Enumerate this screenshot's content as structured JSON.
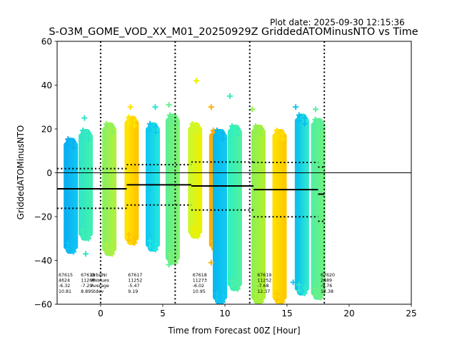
{
  "plot_date": "Plot date: 2025-09-30 12:15:36",
  "chart_data": {
    "type": "scatter",
    "title": "S-O3M_GOME_VOD_XX_M01_20250929Z GriddedATOMinusNTO vs Time",
    "xlabel": "Time from Forecast 00Z [Hour]",
    "ylabel": "GriddedATOMinusNTO",
    "xlim": [
      -3.5,
      25
    ],
    "ylim": [
      -60,
      60
    ],
    "xticks": [
      0,
      5,
      10,
      15,
      20,
      25
    ],
    "yticks": [
      -60,
      -40,
      -20,
      0,
      20,
      40,
      60
    ],
    "xtick_labels": [
      "0",
      "5",
      "10",
      "15",
      "20",
      "25"
    ],
    "ytick_labels": [
      "−60",
      "−40",
      "−20",
      "0",
      "20",
      "40",
      "60"
    ],
    "zero_line": 0,
    "orbit_boundaries": [
      0,
      6,
      12,
      18
    ],
    "columns": [
      {
        "x": -2.4,
        "top": 16,
        "bottom": -37,
        "color": "#0aaef0",
        "color2": "#10c4f5"
      },
      {
        "x": -1.2,
        "top": 20,
        "bottom": -31,
        "color": "#30e6c8",
        "color2": "#40f0b0"
      },
      {
        "x": 0.7,
        "top": 23,
        "bottom": -38,
        "color": "#8cf060",
        "color2": "#b0f040"
      },
      {
        "x": 2.5,
        "top": 26,
        "bottom": -33,
        "color": "#ffe600",
        "color2": "#ffc400"
      },
      {
        "x": 4.2,
        "top": 23,
        "bottom": -36,
        "color": "#10c8f0",
        "color2": "#20e6e0"
      },
      {
        "x": 5.8,
        "top": 27,
        "bottom": -42,
        "color": "#60f090",
        "color2": "#80f070"
      },
      {
        "x": 7.6,
        "top": 23,
        "bottom": -30,
        "color": "#ccf830",
        "color2": "#eef000"
      },
      {
        "x": 9.3,
        "top": 20,
        "bottom": -36,
        "color": "#ffaa00",
        "color2": "#ffc400"
      },
      {
        "x": 9.6,
        "top": 20,
        "bottom": -60,
        "color": "#08b8f0",
        "color2": "#10c8f0"
      },
      {
        "x": 10.8,
        "top": 22,
        "bottom": -54,
        "color": "#30f0c0",
        "color2": "#50f0a0"
      },
      {
        "x": 12.7,
        "top": 22,
        "bottom": -60,
        "color": "#90f050",
        "color2": "#b0f030"
      },
      {
        "x": 14.4,
        "top": 20,
        "bottom": -60,
        "color": "#ffe000",
        "color2": "#ffc800"
      },
      {
        "x": 16.2,
        "top": 27,
        "bottom": -56,
        "color": "#08c0f0",
        "color2": "#30e8d0"
      },
      {
        "x": 17.5,
        "top": 25,
        "bottom": -58,
        "color": "#50f0a0",
        "color2": "#70f080"
      }
    ],
    "outliers": [
      {
        "x": 7.7,
        "y": 42,
        "color": "#e8f000"
      },
      {
        "x": 10.4,
        "y": 35,
        "color": "#30f0c0"
      },
      {
        "x": 8.9,
        "y": 30,
        "color": "#ffb000"
      },
      {
        "x": 4.4,
        "y": 30,
        "color": "#20e8d0"
      },
      {
        "x": 2.4,
        "y": 30,
        "color": "#ffe000"
      },
      {
        "x": 5.5,
        "y": 31,
        "color": "#60f090"
      },
      {
        "x": -1.3,
        "y": 25,
        "color": "#30e6c8"
      },
      {
        "x": 15.7,
        "y": 30,
        "color": "#10c8f0"
      },
      {
        "x": 17.3,
        "y": 29,
        "color": "#50f0a0"
      },
      {
        "x": 12.2,
        "y": 29,
        "color": "#90f050"
      },
      {
        "x": -1.2,
        "y": -37,
        "color": "#30e6c8"
      },
      {
        "x": 5.5,
        "y": -42,
        "color": "#60f090"
      },
      {
        "x": 8.9,
        "y": -41,
        "color": "#ffb000"
      },
      {
        "x": 15.5,
        "y": -50,
        "color": "#10c8f0"
      }
    ],
    "segments": [
      {
        "x0": -3.5,
        "x1": 2.1,
        "mean": -7.3,
        "lower": -16.2,
        "upper": 1.9
      },
      {
        "x0": 2.1,
        "x1": 7.3,
        "mean": -5.47,
        "lower": -14.7,
        "upper": 3.7
      },
      {
        "x0": 7.3,
        "x1": 12.3,
        "mean": -6.02,
        "lower": -17.0,
        "upper": 4.9
      },
      {
        "x0": 12.3,
        "x1": 17.5,
        "mean": -7.68,
        "lower": -20.1,
        "upper": 4.7
      },
      {
        "x0": 17.5,
        "x1": 18.0,
        "mean": -9.76,
        "lower": -22.1,
        "upper": 2.6
      }
    ],
    "orbit_stats": [
      {
        "orbit": "67615",
        "n": "4624",
        "avg": "-6.32",
        "sdev": "10.81",
        "x": -3.5
      },
      {
        "orbit": "67616",
        "n": "11268",
        "avg": "-7.29",
        "sdev": "8.89",
        "x": -1.6
      },
      {
        "orbit": "67617",
        "n": "11252",
        "avg": "-5.47",
        "sdev": "9.19",
        "x": 2.2
      },
      {
        "orbit": "67618",
        "n": "11273",
        "avg": "-6.02",
        "sdev": "10.95",
        "x": 7.4
      },
      {
        "orbit": "67619",
        "n": "11252",
        "avg": "-7.68",
        "sdev": "12.37",
        "x": 12.6
      },
      {
        "orbit": "67620",
        "n": "2489",
        "avg": "-9.76",
        "sdev": "12.38",
        "x": 17.7
      }
    ],
    "stats_legend": [
      "OrbitNr",
      "#Values",
      "Average",
      "Stdev"
    ]
  }
}
